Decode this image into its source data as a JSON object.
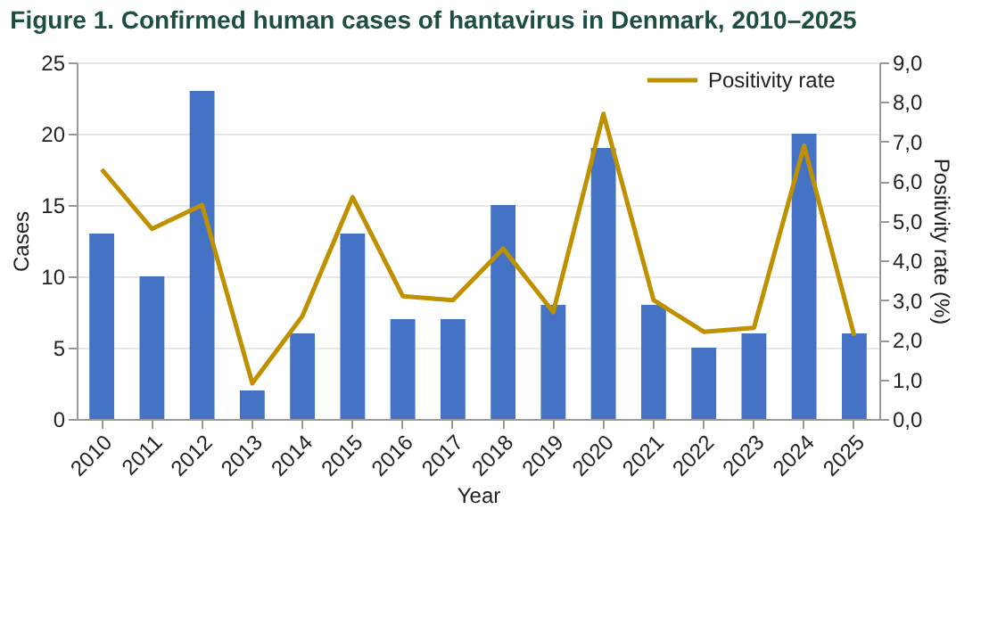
{
  "chart_data": {
    "type": "bar",
    "title": "Figure 1. Confirmed human cases of hantavirus in Denmark, 2010–2025",
    "xlabel": "Year",
    "ylabel": "Cases",
    "y2label": "Positivity rate (%)",
    "categories": [
      "2010",
      "2011",
      "2012",
      "2013",
      "2014",
      "2015",
      "2016",
      "2017",
      "2018",
      "2019",
      "2020",
      "2021",
      "2022",
      "2023",
      "2024",
      "2025"
    ],
    "series": [
      {
        "color": "#4472c4",
        "values": [
          13,
          10,
          23,
          2,
          6,
          13,
          7,
          7,
          15,
          8,
          19,
          8,
          5,
          6,
          20,
          6
        ]
      },
      {
        "name": "Positivity rate",
        "type": "line",
        "axis": "y2",
        "color": "#bf9000",
        "values": [
          6.3,
          4.8,
          5.4,
          0.9,
          2.6,
          5.6,
          3.1,
          3.0,
          4.3,
          2.7,
          7.7,
          3.0,
          2.2,
          2.3,
          6.9,
          2.1
        ]
      }
    ],
    "ylim": [
      0,
      25
    ],
    "yticks": [
      0,
      5,
      10,
      15,
      20,
      25
    ],
    "y2lim": [
      0,
      9
    ],
    "y2ticks": [
      {
        "value": 0,
        "label": "0,0"
      },
      {
        "value": 1,
        "label": "1,0"
      },
      {
        "value": 2,
        "label": "2,0"
      },
      {
        "value": 3,
        "label": "3,0"
      },
      {
        "value": 4,
        "label": "4,0"
      },
      {
        "value": 5,
        "label": "5,0"
      },
      {
        "value": 6,
        "label": "6,0"
      },
      {
        "value": 7,
        "label": "7,0"
      },
      {
        "value": 8,
        "label": "8,0"
      },
      {
        "value": 9,
        "label": "9,0"
      }
    ],
    "grid": "y",
    "legend": "top right",
    "marker": "none",
    "line_style": "solid"
  }
}
